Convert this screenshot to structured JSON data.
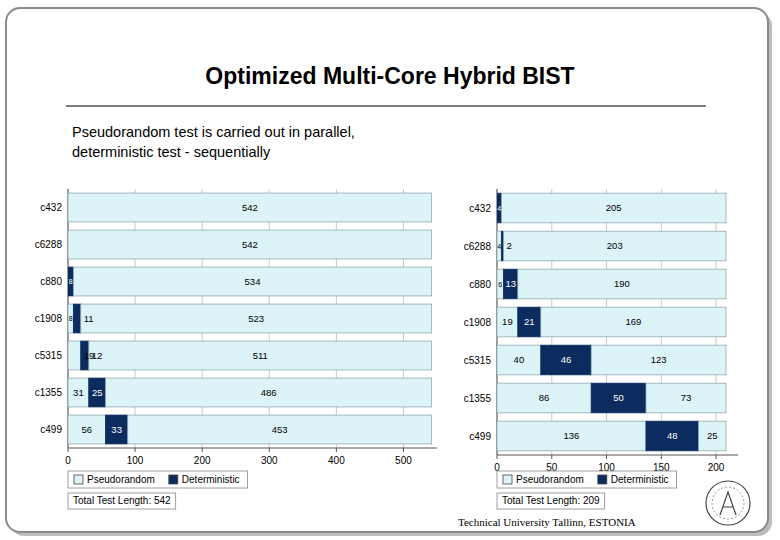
{
  "header": {
    "title": "Optimized Multi-Core Hybrid BIST",
    "subtitle": [
      "Pseudorandom test is carried out in parallel,",
      "deterministic test - sequentially"
    ]
  },
  "footer": {
    "text": "Technical University Tallinn, ESTONIA"
  },
  "chart_data": [
    {
      "type": "bar",
      "orientation": "horizontal",
      "stacked": true,
      "data_labels": true,
      "grid": true,
      "legend": "bottom",
      "categories": [
        "c432",
        "c6288",
        "c880",
        "c1908",
        "c5315",
        "c1355",
        "c499"
      ],
      "series": [
        {
          "name": "Pseudorandom",
          "color": "#dcf3f8",
          "values": [
            0,
            0,
            0,
            8,
            19,
            31,
            56
          ]
        },
        {
          "name": "Deterministic",
          "color": "#0c2b5e",
          "values": [
            0,
            0,
            8,
            11,
            12,
            25,
            33
          ]
        },
        {
          "name": "Pseudorandom",
          "color": "#dcf3f8",
          "values": [
            542,
            542,
            534,
            523,
            511,
            486,
            453
          ]
        }
      ],
      "xlim": [
        0,
        550
      ],
      "xticks": [
        0,
        100,
        200,
        300,
        400,
        500
      ],
      "annotations": [
        "Total Test Length: 542"
      ]
    },
    {
      "type": "bar",
      "orientation": "horizontal",
      "stacked": true,
      "data_labels": true,
      "grid": true,
      "legend": "bottom",
      "categories": [
        "c432",
        "c6288",
        "c880",
        "c1908",
        "c5315",
        "c1355",
        "c499"
      ],
      "series": [
        {
          "name": "Pseudorandom",
          "color": "#dcf3f8",
          "values": [
            0,
            4,
            6,
            19,
            40,
            86,
            136
          ]
        },
        {
          "name": "Deterministic",
          "color": "#0c2b5e",
          "values": [
            4,
            2,
            13,
            21,
            46,
            50,
            48
          ]
        },
        {
          "name": "Pseudorandom",
          "color": "#dcf3f8",
          "values": [
            205,
            203,
            190,
            169,
            123,
            73,
            25
          ]
        }
      ],
      "xlim": [
        0,
        220
      ],
      "xticks": [
        0,
        50,
        100,
        150,
        200
      ],
      "annotations": [
        "Total Test Length: 209"
      ]
    }
  ]
}
